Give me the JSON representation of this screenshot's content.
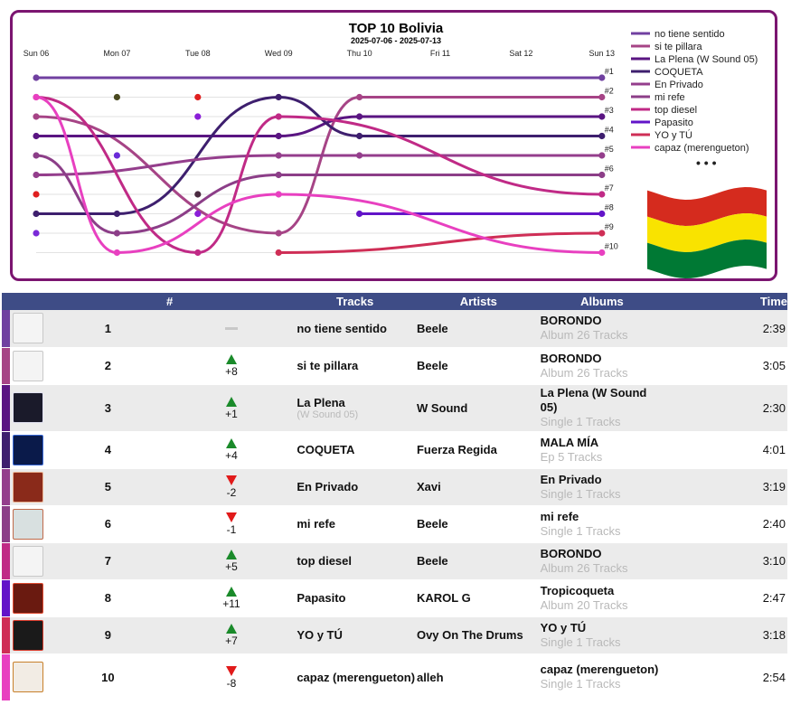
{
  "chart": {
    "title": "TOP 10 Bolivia",
    "subtitle": "2025-07-06 - 2025-07-13",
    "legend_more": "• • •"
  },
  "chart_data": {
    "type": "line",
    "title": "TOP 10 Bolivia",
    "subtitle": "2025-07-06 - 2025-07-13",
    "x": [
      "Sun 06",
      "Mon 07",
      "Tue 08",
      "Wed 09",
      "Thu 10",
      "Fri 11",
      "Sat 12",
      "Sun 13"
    ],
    "rank_labels": [
      "#1",
      "#2",
      "#3",
      "#4",
      "#5",
      "#6",
      "#7",
      "#8",
      "#9",
      "#10"
    ],
    "ylim": [
      1,
      10
    ],
    "y_inverted": true,
    "grid": true,
    "legend_position": "right",
    "series": [
      {
        "name": "no tiene sentido",
        "color": "#7040a0",
        "values": [
          1,
          null,
          null,
          null,
          null,
          null,
          null,
          1
        ]
      },
      {
        "name": "si te pillara",
        "color": "#a64486",
        "values": [
          3,
          null,
          null,
          9,
          2,
          null,
          null,
          2
        ]
      },
      {
        "name": "La Plena (W Sound 05)",
        "color": "#5a1582",
        "values": [
          4,
          null,
          null,
          4,
          3,
          null,
          null,
          3
        ]
      },
      {
        "name": "COQUETA",
        "color": "#3e1f6e",
        "values": [
          8,
          8,
          null,
          2,
          4,
          null,
          null,
          4
        ]
      },
      {
        "name": "En Privado",
        "color": "#943e8c",
        "values": [
          6,
          null,
          null,
          5,
          5,
          null,
          null,
          5
        ]
      },
      {
        "name": "mi refe",
        "color": "#8c3e88",
        "values": [
          5,
          9,
          null,
          6,
          null,
          null,
          null,
          6
        ]
      },
      {
        "name": "top diesel",
        "color": "#c02a86",
        "values": [
          2,
          null,
          10,
          3,
          null,
          null,
          null,
          7
        ]
      },
      {
        "name": "Papasito",
        "color": "#6214c8",
        "values": [
          null,
          null,
          null,
          null,
          8,
          null,
          null,
          8
        ]
      },
      {
        "name": "YO y TÚ",
        "color": "#cf2e56",
        "values": [
          null,
          null,
          null,
          10,
          null,
          null,
          null,
          9
        ]
      },
      {
        "name": "capaz (merengueton)",
        "color": "#e840c0",
        "values": [
          2,
          10,
          null,
          7,
          null,
          null,
          null,
          10
        ]
      }
    ],
    "isolated_points": [
      {
        "day": "Sun 06",
        "rank": 7,
        "color": "#e02020"
      },
      {
        "day": "Sun 06",
        "rank": 9,
        "color": "#7a2ad8"
      },
      {
        "day": "Mon 07",
        "rank": 2,
        "color": "#4a4a20"
      },
      {
        "day": "Mon 07",
        "rank": 5,
        "color": "#6a2ad8"
      },
      {
        "day": "Tue 08",
        "rank": 2,
        "color": "#e02020"
      },
      {
        "day": "Tue 08",
        "rank": 3,
        "color": "#8a1ed8"
      },
      {
        "day": "Tue 08",
        "rank": 7,
        "color": "#4a2a40"
      },
      {
        "day": "Tue 08",
        "rank": 8,
        "color": "#8a1ed8"
      }
    ]
  },
  "table": {
    "headers": {
      "num": "#",
      "tracks": "Tracks",
      "artists": "Artists",
      "albums": "Albums",
      "time": "Time"
    },
    "rows": [
      {
        "rank": "1",
        "change": "",
        "dir": "same",
        "track": "no tiene sentido",
        "feat": "",
        "artist": "Beele",
        "album": "BORONDO",
        "album_sub": "Album 26 Tracks",
        "time": "2:39",
        "stripe": "#7040a0",
        "cover": "#f4f4f4",
        "cover_fg": "#c8c8c8"
      },
      {
        "rank": "2",
        "change": "+8",
        "dir": "up",
        "track": "si te pillara",
        "feat": "",
        "artist": "Beele",
        "album": "BORONDO",
        "album_sub": "Album 26 Tracks",
        "time": "3:05",
        "stripe": "#a64486",
        "cover": "#f4f4f4",
        "cover_fg": "#c8c8c8"
      },
      {
        "rank": "3",
        "change": "+1",
        "dir": "up",
        "track": "La Plena",
        "feat": "(W Sound 05)",
        "artist": "W Sound",
        "album": "La Plena (W Sound 05)",
        "album_sub": "Single 1 Tracks",
        "time": "2:30",
        "stripe": "#5a1582",
        "cover": "#1a1a2a",
        "cover_fg": "#e0e0f0"
      },
      {
        "rank": "4",
        "change": "+4",
        "dir": "up",
        "track": "COQUETA",
        "feat": "",
        "artist": "Fuerza Regida",
        "album": "MALA MÍA",
        "album_sub": "Ep 5 Tracks",
        "time": "4:01",
        "stripe": "#3e1f6e",
        "cover": "#0a1a4a",
        "cover_fg": "#3a6ad8"
      },
      {
        "rank": "5",
        "change": "-2",
        "dir": "down",
        "track": "En Privado",
        "feat": "",
        "artist": "Xavi",
        "album": "En Privado",
        "album_sub": "Single 1 Tracks",
        "time": "3:19",
        "stripe": "#943e8c",
        "cover": "#8a2a1a",
        "cover_fg": "#e8b090"
      },
      {
        "rank": "6",
        "change": "-1",
        "dir": "down",
        "track": "mi refe",
        "feat": "",
        "artist": "Beele",
        "album": "mi refe",
        "album_sub": "Single 1 Tracks",
        "time": "2:40",
        "stripe": "#8c3e88",
        "cover": "#d8e0e0",
        "cover_fg": "#c06a4a"
      },
      {
        "rank": "7",
        "change": "+5",
        "dir": "up",
        "track": "top diesel",
        "feat": "",
        "artist": "Beele",
        "album": "BORONDO",
        "album_sub": "Album 26 Tracks",
        "time": "3:10",
        "stripe": "#c02a86",
        "cover": "#f4f4f4",
        "cover_fg": "#c8c8c8"
      },
      {
        "rank": "8",
        "change": "+11",
        "dir": "up",
        "track": "Papasito",
        "feat": "",
        "artist": "KAROL G",
        "album": "Tropicoqueta",
        "album_sub": "Album 20 Tracks",
        "time": "2:47",
        "stripe": "#6214c8",
        "cover": "#6a1a10",
        "cover_fg": "#e04a30"
      },
      {
        "rank": "9",
        "change": "+7",
        "dir": "up",
        "track": "YO y TÚ",
        "feat": "",
        "artist": "Ovy On The Drums",
        "album": "YO y TÚ",
        "album_sub": "Single 1 Tracks",
        "time": "3:18",
        "stripe": "#cf2e56",
        "cover": "#1a1a1a",
        "cover_fg": "#d83a2a"
      },
      {
        "rank": "10",
        "change": "-8",
        "dir": "down",
        "track": "capaz (merengueton)",
        "feat": "",
        "artist": "alleh",
        "album": "capaz (merengueton)",
        "album_sub": "Single 1 Tracks",
        "time": "2:54",
        "stripe": "#e840c0",
        "cover": "#f2ece4",
        "cover_fg": "#c8802a"
      }
    ]
  },
  "flag_colors": [
    "#d52b1e",
    "#f9e300",
    "#007934"
  ]
}
